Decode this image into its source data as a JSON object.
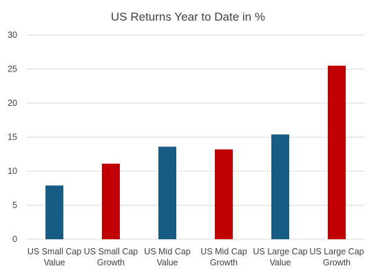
{
  "chart_data": {
    "type": "bar",
    "title": "US Returns Year to Date in %",
    "xlabel": "",
    "ylabel": "",
    "ylim": [
      0,
      30
    ],
    "yticks": [
      0,
      5,
      10,
      15,
      20,
      25,
      30
    ],
    "grid": true,
    "legend": "none",
    "categories": [
      [
        "US Small Cap",
        "Value"
      ],
      [
        "US Small Cap",
        "Growth"
      ],
      [
        "US Mid Cap",
        "Value"
      ],
      [
        "US Mid Cap",
        "Growth"
      ],
      [
        "US Large Cap",
        "Value"
      ],
      [
        "US Large Cap",
        "Growth"
      ]
    ],
    "values": [
      7.9,
      11.1,
      13.6,
      13.2,
      15.4,
      25.5
    ],
    "bar_colors": [
      "#175d83",
      "#c00000",
      "#175d83",
      "#c00000",
      "#175d83",
      "#c00000"
    ],
    "gridline_color": "#d9d9d9",
    "text_color": "#404040"
  }
}
